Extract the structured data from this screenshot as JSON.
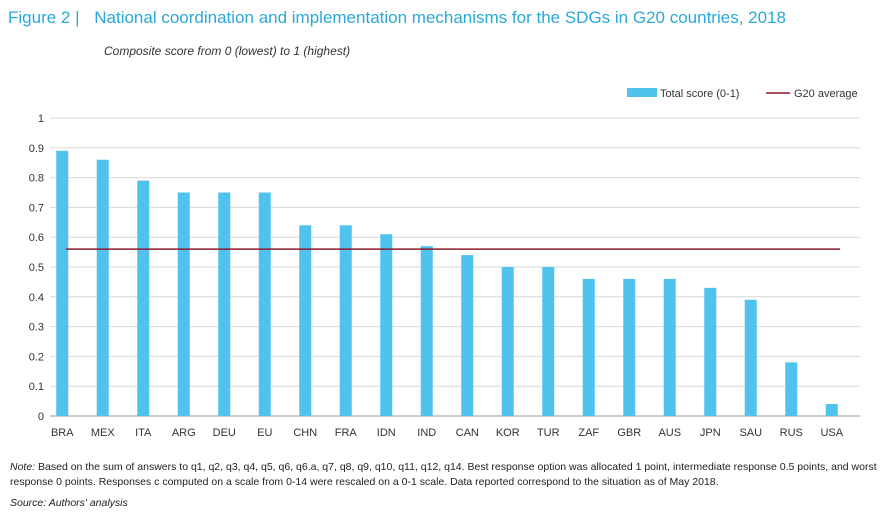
{
  "figure": {
    "number": "Figure 2 |",
    "title": "National coordination and implementation mechanisms for the SDGs in G20 countries, 2018",
    "subtitle": "Composite score from 0 (lowest) to 1 (highest)"
  },
  "chart_data": {
    "type": "bar",
    "categories": [
      "BRA",
      "MEX",
      "ITA",
      "ARG",
      "DEU",
      "EU",
      "CHN",
      "FRA",
      "IDN",
      "IND",
      "CAN",
      "KOR",
      "TUR",
      "ZAF",
      "GBR",
      "AUS",
      "JPN",
      "SAU",
      "RUS",
      "USA"
    ],
    "series": [
      {
        "name": "Total score (0-1)",
        "values": [
          0.89,
          0.86,
          0.79,
          0.75,
          0.75,
          0.75,
          0.64,
          0.64,
          0.61,
          0.57,
          0.54,
          0.5,
          0.5,
          0.46,
          0.46,
          0.46,
          0.43,
          0.39,
          0.18,
          0.04
        ],
        "color": "#4fc3ee"
      }
    ],
    "reference_line": {
      "name": "G20 average",
      "value": 0.56,
      "color": "#8b1a2b"
    },
    "ylim": [
      0,
      1
    ],
    "yticks": [
      "0",
      "0.1",
      "0.2",
      "0.3",
      "0.4",
      "0.5",
      "0.6",
      "0.7",
      "0.8",
      "0.9",
      "1"
    ],
    "grid": true,
    "legend_position": "top-right"
  },
  "notes": {
    "label": "Note:",
    "text": "Based on the sum of answers to q1, q2, q3, q4, q5, q6, q6.a, q7, q8, q9, q10, q11, q12, q14. Best response option was allocated 1 point, intermediate response 0.5 points, and worst response 0 points. Responses c computed on a scale from 0-14 were rescaled on a 0-1 scale. Data reported correspond to the situation as of May 2018.",
    "source_label": "Source:",
    "source_text": "Authors' analysis"
  },
  "colors": {
    "accent": "#2aa8d8",
    "bar": "#4fc3ee",
    "average_line": "#8b1a2b",
    "grid": "#d9d9d9"
  }
}
